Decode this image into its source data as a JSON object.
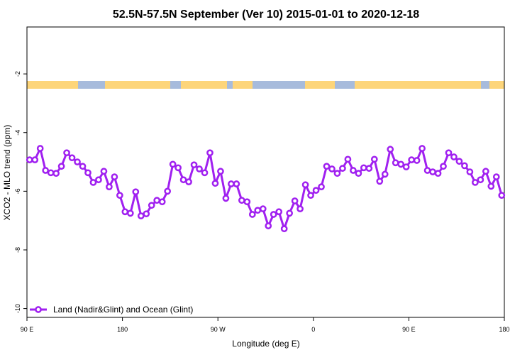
{
  "chart_data": {
    "type": "line",
    "title": "52.5N-57.5N September (Ver 10)   2015-01-01 to 2020-12-18",
    "xlabel": "Longitude (deg E)",
    "ylabel": "XCO2 - MLO trend (ppm)",
    "legend": "bottomleft",
    "xlim": [
      90,
      540
    ],
    "xticks": [
      {
        "value": 90,
        "label": "90 E"
      },
      {
        "value": 180,
        "label": "180"
      },
      {
        "value": 270,
        "label": "90 W"
      },
      {
        "value": 360,
        "label": "0"
      },
      {
        "value": 450,
        "label": "90 E"
      },
      {
        "value": 540,
        "label": "180"
      }
    ],
    "ylim": [
      -10.3,
      -0.4
    ],
    "yticks": [
      -2,
      -4,
      -6,
      -8,
      -10
    ],
    "x": [
      92.5,
      97.5,
      102.5,
      107.5,
      112.5,
      117.5,
      122.5,
      127.5,
      132.5,
      137.5,
      142.5,
      147.5,
      152.5,
      157.5,
      162.5,
      167.5,
      172.5,
      177.5,
      182.5,
      187.5,
      192.5,
      197.5,
      202.5,
      207.5,
      212.5,
      217.5,
      222.5,
      227.5,
      232.5,
      237.5,
      242.5,
      247.5,
      252.5,
      257.5,
      262.5,
      267.5,
      272.5,
      277.5,
      282.5,
      287.5,
      292.5,
      297.5,
      302.5,
      307.5,
      312.5,
      317.5,
      322.5,
      327.5,
      332.5,
      337.5,
      342.5,
      347.5,
      352.5,
      357.5,
      362.5,
      367.5,
      372.5,
      377.5,
      382.5,
      387.5,
      392.5,
      397.5,
      402.5,
      407.5,
      412.5,
      417.5,
      422.5,
      427.5,
      432.5,
      437.5,
      442.5,
      447.5,
      452.5,
      457.5,
      462.5,
      467.5,
      472.5,
      477.5,
      482.5,
      487.5,
      492.5,
      497.5,
      502.5,
      507.5,
      512.5,
      517.5,
      522.5,
      527.5,
      532.5,
      537.5
    ],
    "series": [
      {
        "name": "Land (Nadir&Glint) and Ocean (Glint)",
        "color": "#a020f0",
        "values": [
          -4.93,
          -4.93,
          -4.54,
          -5.29,
          -5.37,
          -5.39,
          -5.15,
          -4.69,
          -4.86,
          -5.0,
          -5.15,
          -5.37,
          -5.7,
          -5.61,
          -5.32,
          -5.85,
          -5.51,
          -6.14,
          -6.7,
          -6.75,
          -6.02,
          -6.84,
          -6.77,
          -6.48,
          -6.31,
          -6.36,
          -6.0,
          -5.08,
          -5.2,
          -5.61,
          -5.68,
          -5.1,
          -5.24,
          -5.37,
          -4.69,
          -5.73,
          -5.32,
          -6.24,
          -5.75,
          -5.75,
          -6.31,
          -6.36,
          -6.79,
          -6.65,
          -6.6,
          -7.18,
          -6.79,
          -6.7,
          -7.28,
          -6.75,
          -6.33,
          -6.6,
          -5.78,
          -6.14,
          -5.97,
          -5.85,
          -5.15,
          -5.24,
          -5.39,
          -5.22,
          -4.91,
          -5.29,
          -5.39,
          -5.2,
          -5.22,
          -4.91,
          -5.66,
          -5.42,
          -4.57,
          -5.03,
          -5.08,
          -5.17,
          -4.93,
          -4.95,
          -4.54,
          -5.29,
          -5.34,
          -5.39,
          -5.15,
          -4.69,
          -4.83,
          -4.98,
          -5.13,
          -5.34,
          -5.7,
          -5.61,
          -5.32,
          -5.83,
          -5.51,
          -6.14
        ]
      }
    ]
  }
}
